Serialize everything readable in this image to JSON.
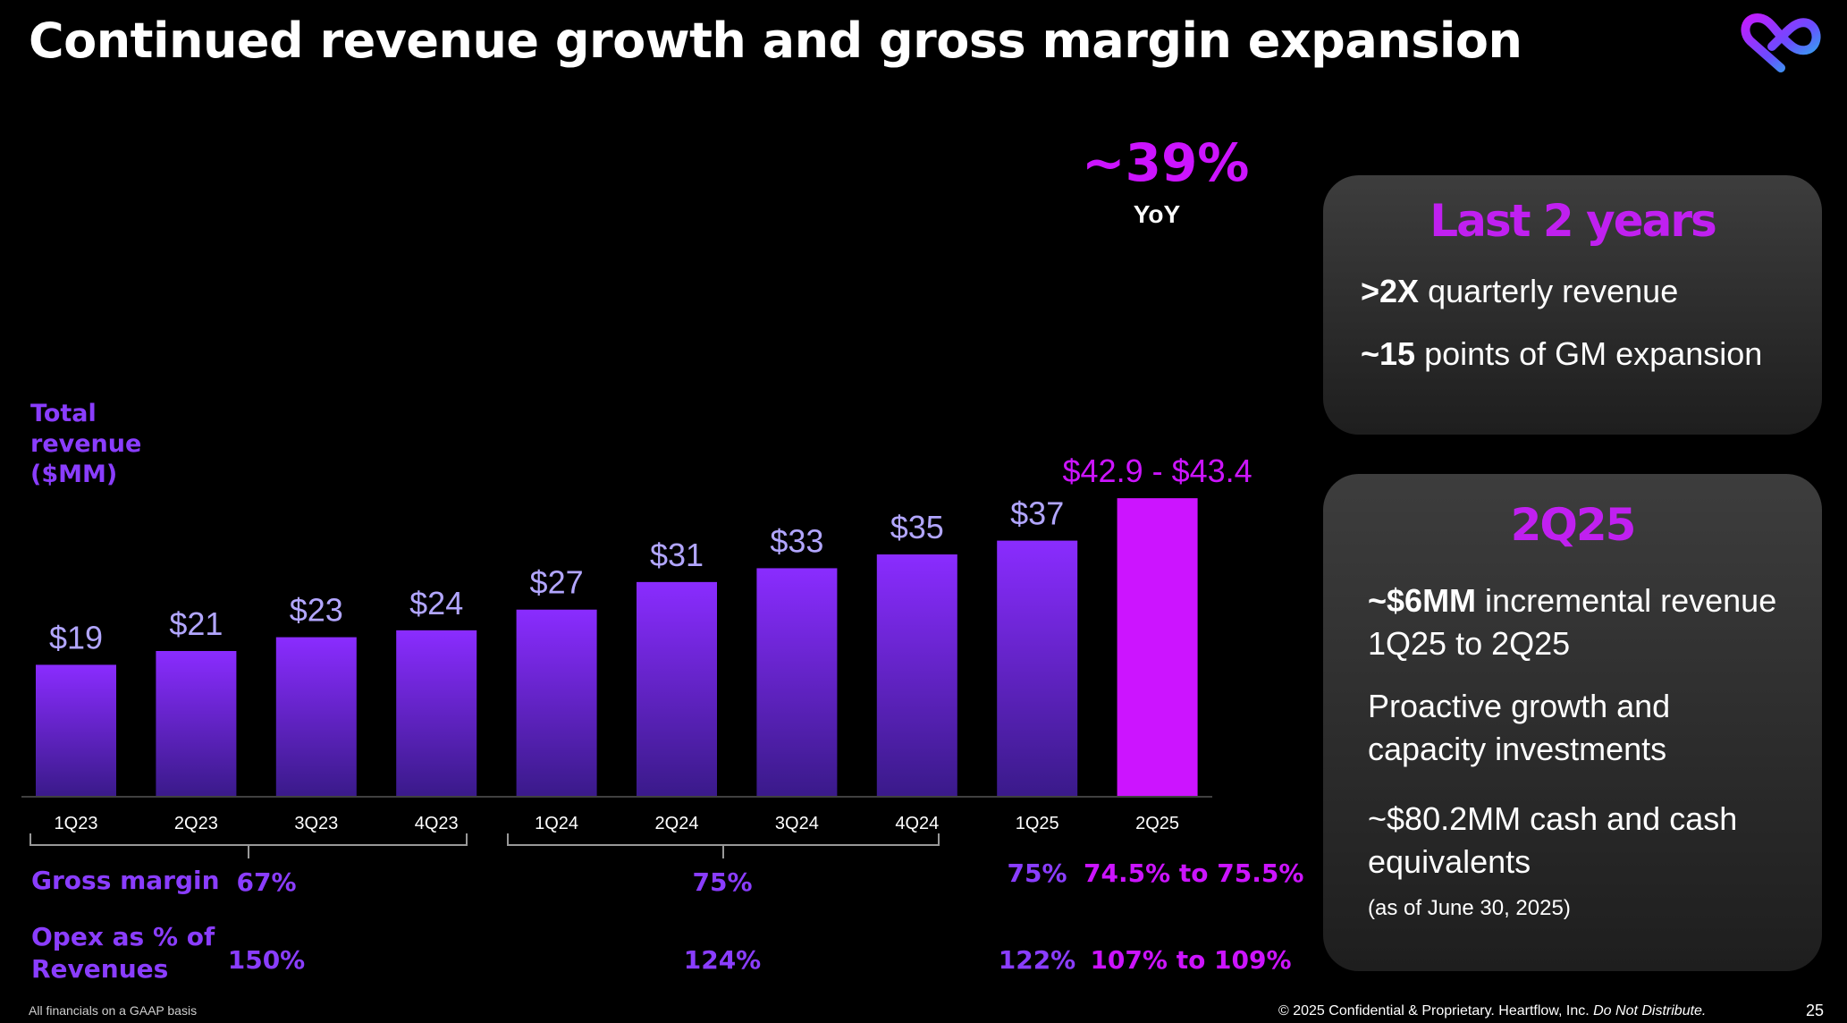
{
  "title": "Continued revenue growth and gross margin expansion",
  "logo": {
    "icon": "heartflow-logo-icon"
  },
  "chart_data": {
    "type": "bar",
    "ylabel": "Total revenue ($MM)",
    "categories": [
      "1Q23",
      "2Q23",
      "3Q23",
      "4Q23",
      "1Q24",
      "2Q24",
      "3Q24",
      "4Q24",
      "1Q25",
      "2Q25"
    ],
    "values": [
      19,
      21,
      23,
      24,
      27,
      31,
      33,
      35,
      37,
      43.15
    ],
    "data_labels": [
      "$19",
      "$21",
      "$23",
      "$24",
      "$27",
      "$31",
      "$33",
      "$35",
      "$37",
      "$42.9 - $43.4"
    ],
    "highlight_index": 9,
    "colors": {
      "bar_top": "#8a2cff",
      "bar_bottom": "#3a1a8a",
      "highlight": "#cc14ff",
      "label": "#b2a6ff"
    },
    "grid": false
  },
  "yoy": {
    "value": "~39%",
    "label": "YoY"
  },
  "metrics": {
    "gross_margin": {
      "label": "Gross margin",
      "groups": [
        {
          "value": "67%"
        },
        {
          "value": "75%"
        },
        {
          "value": "75%"
        },
        {
          "value": "74.5% to 75.5%"
        }
      ]
    },
    "opex": {
      "label_line1": "Opex as % of",
      "label_line2": "Revenues",
      "groups": [
        {
          "value": "150%"
        },
        {
          "value": "124%"
        },
        {
          "value": "122%"
        },
        {
          "value": "107% to 109%"
        }
      ]
    }
  },
  "cards": {
    "last_two_years": {
      "title": "Last 2 years",
      "line1_bold": ">2X",
      "line1_rest": " quarterly revenue",
      "line2_bold": "~15",
      "line2_rest": " points of GM expansion"
    },
    "q2_25": {
      "title": "2Q25",
      "item1_bold": "~$6MM",
      "item1_rest": " incremental revenue 1Q25 to 2Q25",
      "item2": "Proactive growth and capacity investments",
      "item3": "~$80.2MM cash and cash equivalents",
      "item3_note": "(as of June 30, 2025)"
    }
  },
  "footer": {
    "left": "All financials on a GAAP basis",
    "right_main": "© 2025 Confidential & Proprietary. Heartflow, Inc. ",
    "right_italic": "Do Not Distribute.",
    "page": "25"
  }
}
